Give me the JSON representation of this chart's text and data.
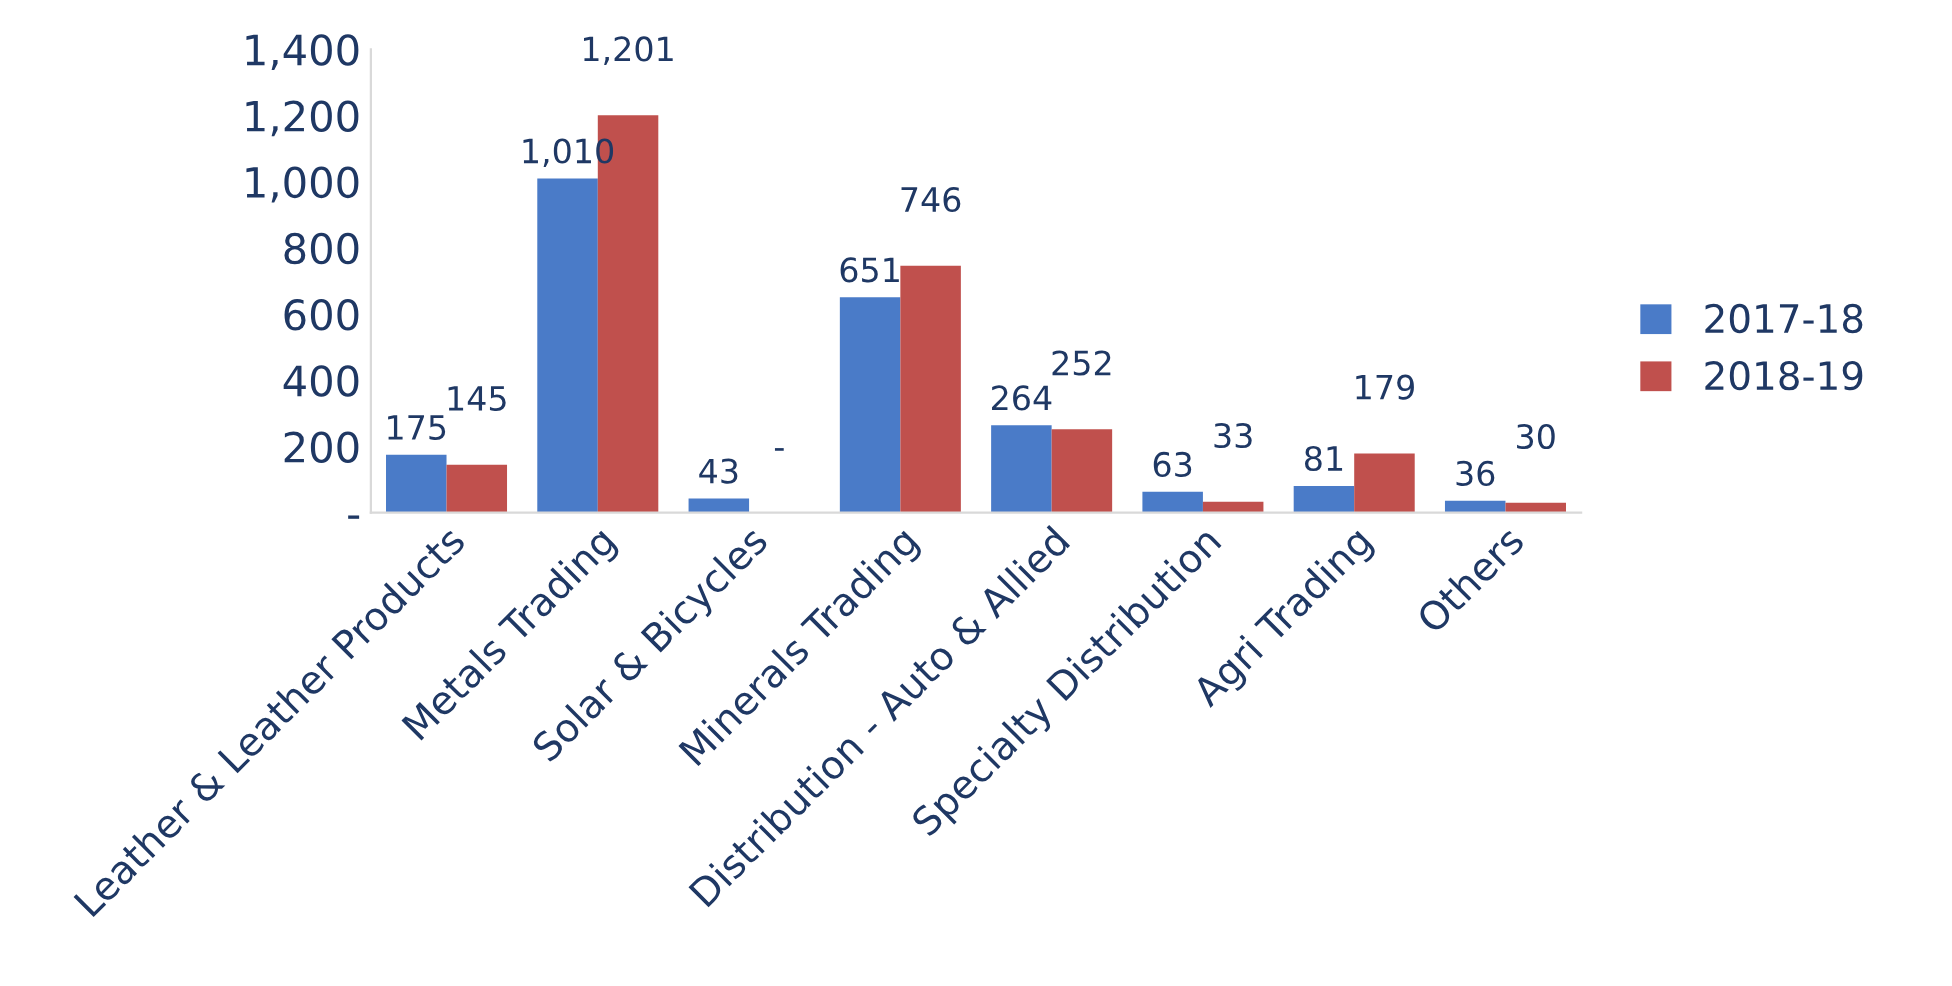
{
  "chart_data": {
    "type": "bar",
    "categories": [
      "Leather & Leather Products",
      "Metals Trading",
      "Solar & Bicycles",
      "Minerals Trading",
      "Distribution - Auto & Allied",
      "Specialty Distribution",
      "Agri Trading",
      "Others"
    ],
    "series": [
      {
        "name": "2017-18",
        "color": "#4a7bc8",
        "values": [
          175,
          1010,
          43,
          651,
          264,
          63,
          81,
          36
        ],
        "value_labels": [
          "175",
          "1,010",
          "43",
          "651",
          "264",
          "63",
          "81",
          "36"
        ]
      },
      {
        "name": "2018-19",
        "color": "#c0504d",
        "values": [
          145,
          1201,
          0,
          746,
          252,
          33,
          179,
          30
        ],
        "value_labels": [
          "145",
          "1,201",
          "-",
          "746",
          "252",
          "33",
          "179",
          "30"
        ]
      }
    ],
    "ylim": [
      0,
      1400
    ],
    "yticks": [
      {
        "value": 0,
        "label": "-"
      },
      {
        "value": 200,
        "label": "200"
      },
      {
        "value": 400,
        "label": "400"
      },
      {
        "value": 600,
        "label": "600"
      },
      {
        "value": 800,
        "label": "800"
      },
      {
        "value": 1000,
        "label": "1,000"
      },
      {
        "value": 1200,
        "label": "1,200"
      },
      {
        "value": 1400,
        "label": "1,400"
      }
    ],
    "grid": false,
    "legend": "right"
  }
}
